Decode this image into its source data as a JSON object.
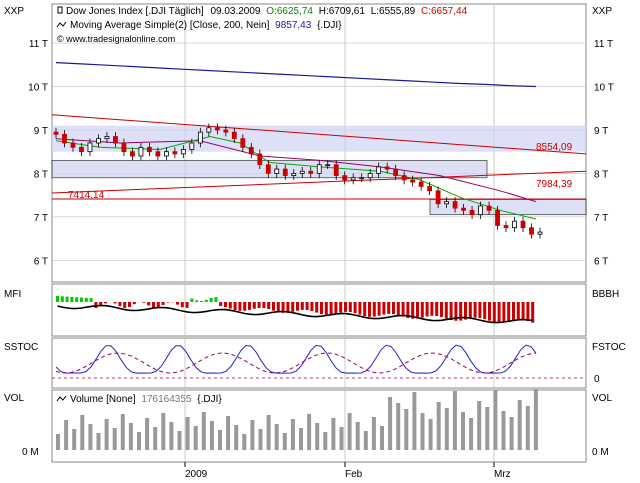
{
  "axis_left_label": "XXP",
  "axis_right_label": "XXP",
  "watermark": "© www.tradesignalonline.com",
  "legend": {
    "price_label": "Dow Jones Index [.DJI  Täglich]",
    "date": "09.03.2009",
    "open_text": "O:6625,74",
    "high_text": "H:6709,61",
    "low_text": "L:6555,89",
    "close_text": "C:6657,44",
    "ma_label": "Moving Average Simple(2) [Close, 200, Nein]",
    "ma_value": "9857,43",
    "ma_suffix": "{.DJI}"
  },
  "price_levels": {
    "red_upper": "8554,09",
    "red_mid": "7984,39",
    "red_left": "7414,14"
  },
  "y_ticks": [
    "11 T",
    "10 T",
    "9 T",
    "8 T",
    "7 T",
    "6 T"
  ],
  "mfi": {
    "left_label": "MFI",
    "right_label": "BBBH"
  },
  "sstoc": {
    "left_label": "SSTOC",
    "right_label": "FSTOC",
    "zero_label": "0"
  },
  "volume": {
    "left_label": "VOL",
    "right_label": "VOL",
    "legend_label": "Volume [None]",
    "legend_value": "176164355",
    "legend_suffix": "{.DJI}",
    "zero_left": "0 M",
    "zero_right": "0 M"
  },
  "x_labels": [
    "2009",
    "Feb",
    "Mrz"
  ],
  "colors": {
    "up": "#000000",
    "down": "#cc0000",
    "ma200": "#1a1a99",
    "green_ma": "#00aa00",
    "purple_ma": "#990066",
    "red_line": "#cc0000",
    "band_fill": "#cfd3f2",
    "mfi_pos": "#00cc00",
    "mfi_neg": "#cc0000",
    "grid": "#c0c0c0",
    "volume_bar": "#999999"
  },
  "chart_data": {
    "type": "candlestick",
    "y_unit": "T (thousands of points)",
    "ylim": [
      5.5,
      11.9
    ],
    "last_candle": {
      "date": "09.03.2009",
      "open": 6625.74,
      "high": 6709.61,
      "low": 6555.89,
      "close": 6657.44
    },
    "ma200_last": 9857.43,
    "closes": [
      8.9,
      8.7,
      8.6,
      8.5,
      8.7,
      8.8,
      8.85,
      8.7,
      8.5,
      8.4,
      8.6,
      8.5,
      8.4,
      8.5,
      8.45,
      8.55,
      8.7,
      8.95,
      9.05,
      9.0,
      8.95,
      8.8,
      8.6,
      8.45,
      8.2,
      8.0,
      8.1,
      7.95,
      8.0,
      8.05,
      8.0,
      8.2,
      8.2,
      7.95,
      7.85,
      7.9,
      7.9,
      8.0,
      8.15,
      8.1,
      7.95,
      7.85,
      7.8,
      7.7,
      7.6,
      7.3,
      7.35,
      7.2,
      7.15,
      7.05,
      7.25,
      7.15,
      6.8,
      6.75,
      6.9,
      6.75,
      6.6,
      6.65
    ],
    "ma200": [
      10.55,
      10.52,
      10.49,
      10.46,
      10.43,
      10.4,
      10.37,
      10.34,
      10.31,
      10.28,
      10.25,
      10.22,
      10.19,
      10.16,
      10.13,
      10.1,
      10.07,
      10.05,
      10.02,
      10.0
    ]
  }
}
